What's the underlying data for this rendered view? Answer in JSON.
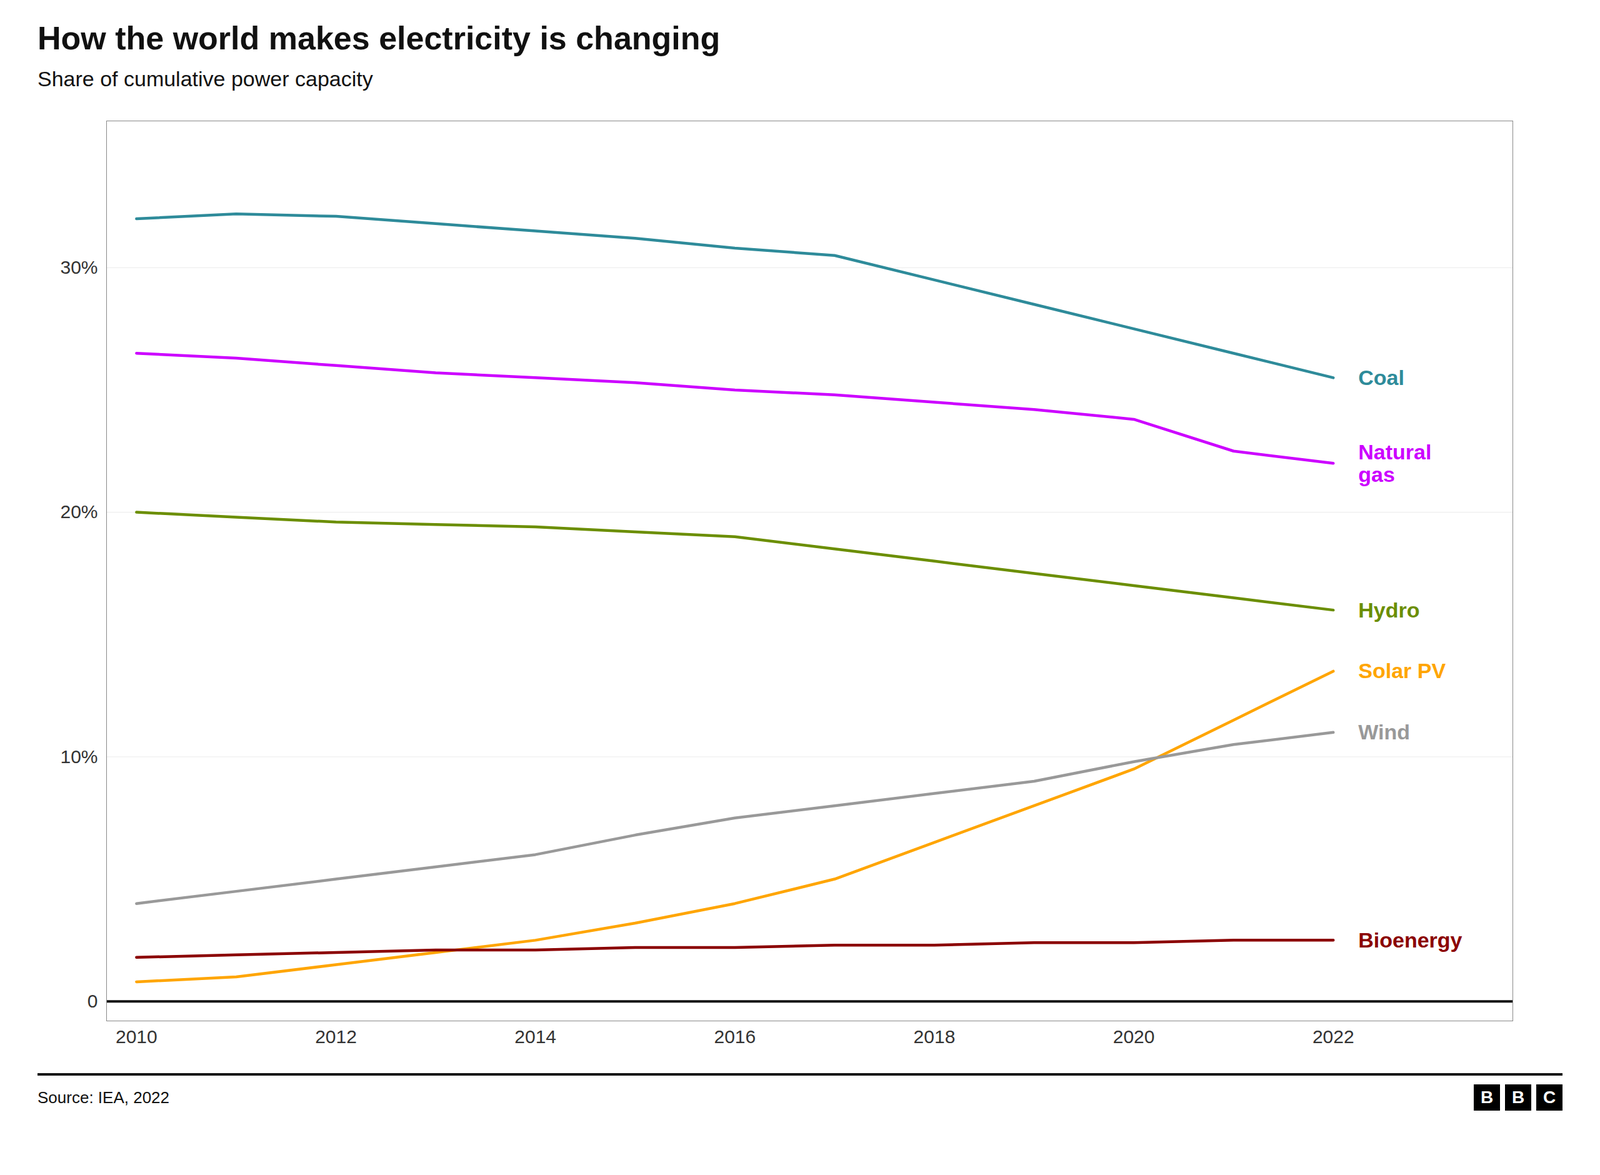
{
  "chart_data": {
    "type": "line",
    "title": "How the world makes electricity is changing",
    "subtitle": "Share of cumulative power capacity",
    "source": "Source: IEA, 2022",
    "logo": "BBC",
    "x": [
      2010,
      2011,
      2012,
      2013,
      2014,
      2015,
      2016,
      2017,
      2018,
      2019,
      2020,
      2021,
      2022
    ],
    "series": [
      {
        "name": "Coal",
        "label": "Coal",
        "color": "#2e8b9a",
        "values": [
          32.0,
          32.2,
          32.1,
          31.8,
          31.5,
          31.2,
          30.8,
          30.5,
          29.5,
          28.5,
          27.5,
          26.5,
          25.5
        ]
      },
      {
        "name": "Natural gas",
        "label": "Natural\ngas",
        "color": "#cc00ff",
        "values": [
          26.5,
          26.3,
          26.0,
          25.7,
          25.5,
          25.3,
          25.0,
          24.8,
          24.5,
          24.2,
          23.8,
          22.5,
          22.0
        ]
      },
      {
        "name": "Hydro",
        "label": "Hydro",
        "color": "#6b8e00",
        "values": [
          20.0,
          19.8,
          19.6,
          19.5,
          19.4,
          19.2,
          19.0,
          18.5,
          18.0,
          17.5,
          17.0,
          16.5,
          16.0
        ]
      },
      {
        "name": "Solar PV",
        "label": "Solar PV",
        "color": "#ffa500",
        "values": [
          0.8,
          1.0,
          1.5,
          2.0,
          2.5,
          3.2,
          4.0,
          5.0,
          6.5,
          8.0,
          9.5,
          11.5,
          13.5
        ]
      },
      {
        "name": "Wind",
        "label": "Wind",
        "color": "#999999",
        "values": [
          4.0,
          4.5,
          5.0,
          5.5,
          6.0,
          6.8,
          7.5,
          8.0,
          8.5,
          9.0,
          9.8,
          10.5,
          11.0
        ]
      },
      {
        "name": "Bioenergy",
        "label": "Bioenergy",
        "color": "#8b0000",
        "values": [
          1.8,
          1.9,
          2.0,
          2.1,
          2.1,
          2.2,
          2.2,
          2.3,
          2.3,
          2.4,
          2.4,
          2.5,
          2.5
        ]
      }
    ],
    "xlim": [
      2009.7,
      2023.8
    ],
    "xticks": [
      2010,
      2012,
      2014,
      2016,
      2018,
      2020,
      2022
    ],
    "ylim": [
      -0.8,
      36
    ],
    "yticks": [
      0,
      {
        "value": 10,
        "label": "10%"
      },
      {
        "value": 20,
        "label": "20%"
      },
      {
        "value": 30,
        "label": "30%"
      }
    ],
    "grid": true
  }
}
